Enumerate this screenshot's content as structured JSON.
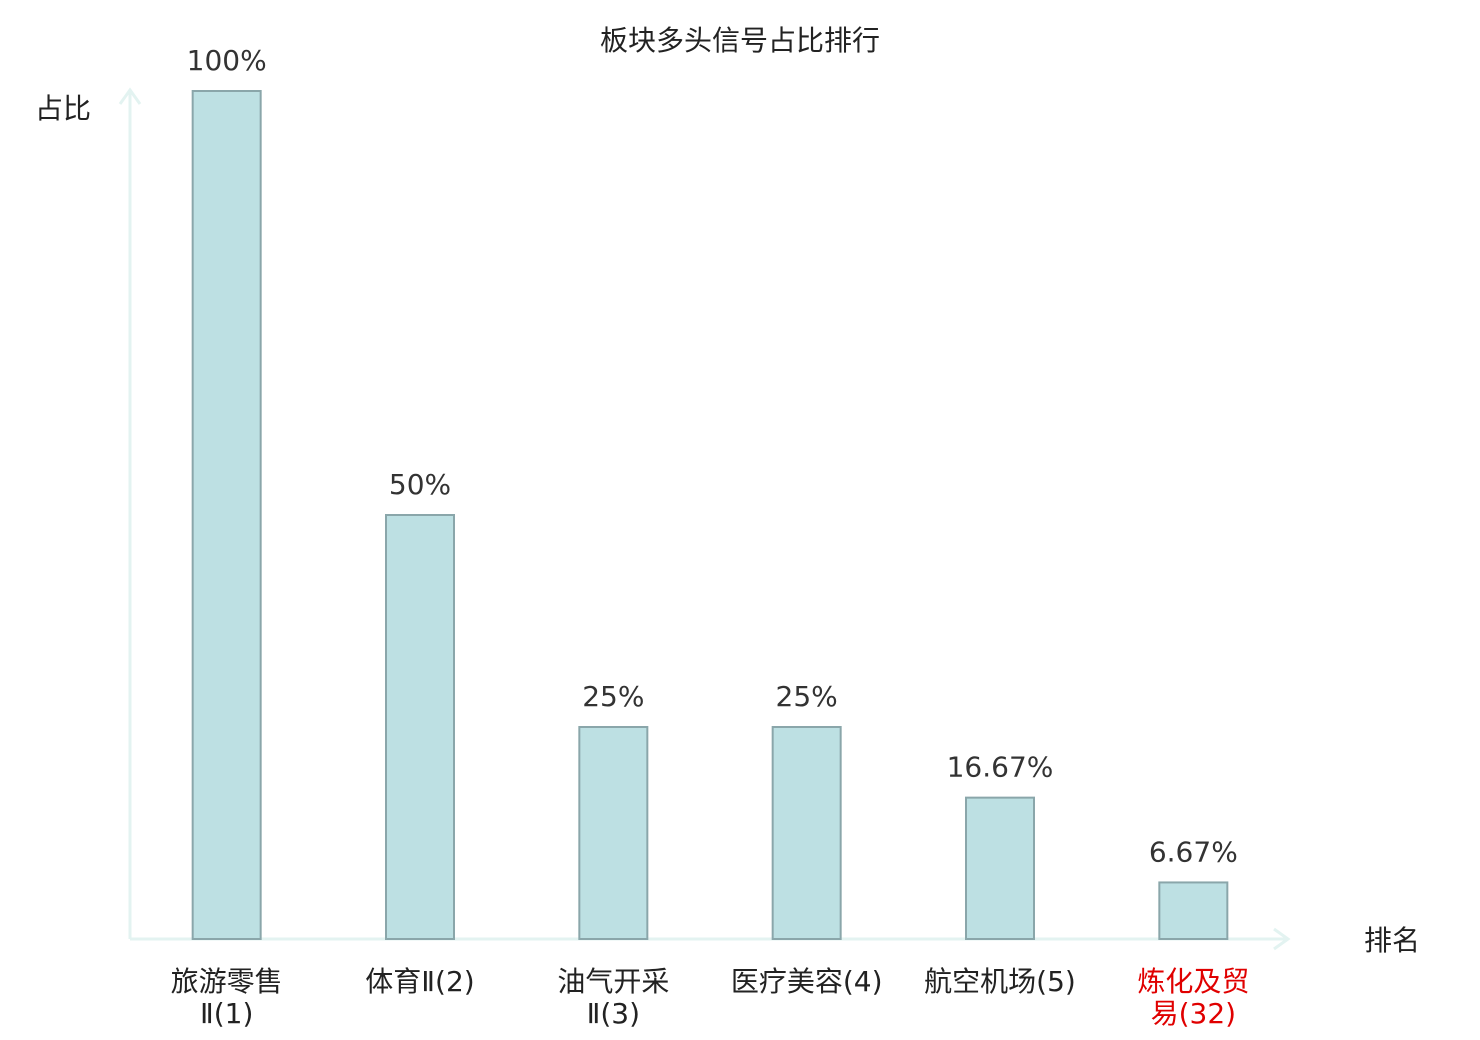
{
  "chart_data": {
    "type": "bar",
    "title": "板块多头信号占比排行",
    "y_label": "占比",
    "x_label": "排名",
    "categories": [
      [
        "旅游零售",
        "Ⅱ(1)"
      ],
      [
        "体育Ⅱ(2)"
      ],
      [
        "油气开采",
        "Ⅱ(3)"
      ],
      [
        "医疗美容(4)"
      ],
      [
        "航空机场(5)"
      ],
      [
        "炼化及贸",
        "易(32)"
      ]
    ],
    "category_colors": [
      "#222222",
      "#222222",
      "#222222",
      "#222222",
      "#222222",
      "#e00000"
    ],
    "values": [
      100,
      50,
      25,
      25,
      16.67,
      6.67
    ],
    "value_labels": [
      "100%",
      "50%",
      "25%",
      "25%",
      "16.67%",
      "6.67%"
    ],
    "color": "#bde0e3",
    "edge_color": "#8aa6aa",
    "ylim": [
      0,
      100
    ]
  }
}
